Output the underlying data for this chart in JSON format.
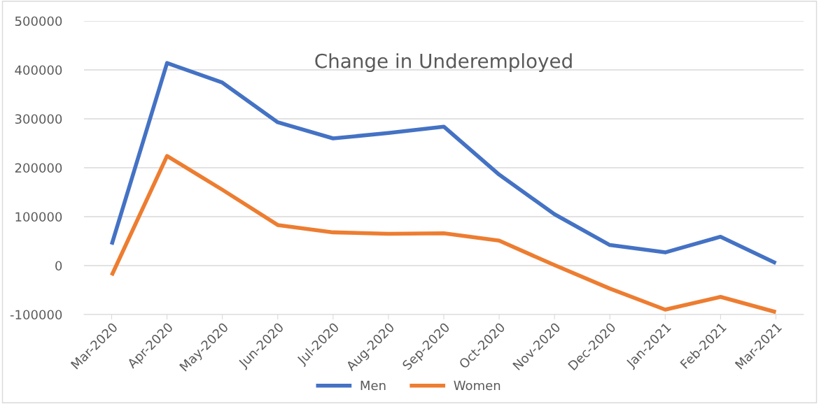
{
  "chart_data": {
    "type": "line",
    "title": "Change in Underemployed",
    "categories": [
      "Mar-2020",
      "Apr-2020",
      "May-2020",
      "Jun-2020",
      "Jul-2020",
      "Aug-2020",
      "Sep-2020",
      "Oct-2020",
      "Nov-2020",
      "Dec-2020",
      "Jan-2021",
      "Feb-2021",
      "Mar-2021"
    ],
    "series": [
      {
        "name": "Men",
        "color": "#4472c4",
        "values": [
          43000,
          414000,
          374000,
          293000,
          260000,
          271000,
          284000,
          186000,
          105000,
          42000,
          27000,
          59000,
          5000
        ]
      },
      {
        "name": "Women",
        "color": "#ed7d31",
        "values": [
          -20000,
          224000,
          155000,
          83000,
          68000,
          65000,
          66000,
          51000,
          1000,
          -47000,
          -90000,
          -64000,
          -95000
        ]
      }
    ],
    "ylim": [
      -100000,
      500000
    ],
    "yticks": [
      -100000,
      0,
      100000,
      200000,
      300000,
      400000,
      500000
    ],
    "grid": "y",
    "legend": "bottom",
    "marker": "none",
    "line_style": "solid"
  }
}
